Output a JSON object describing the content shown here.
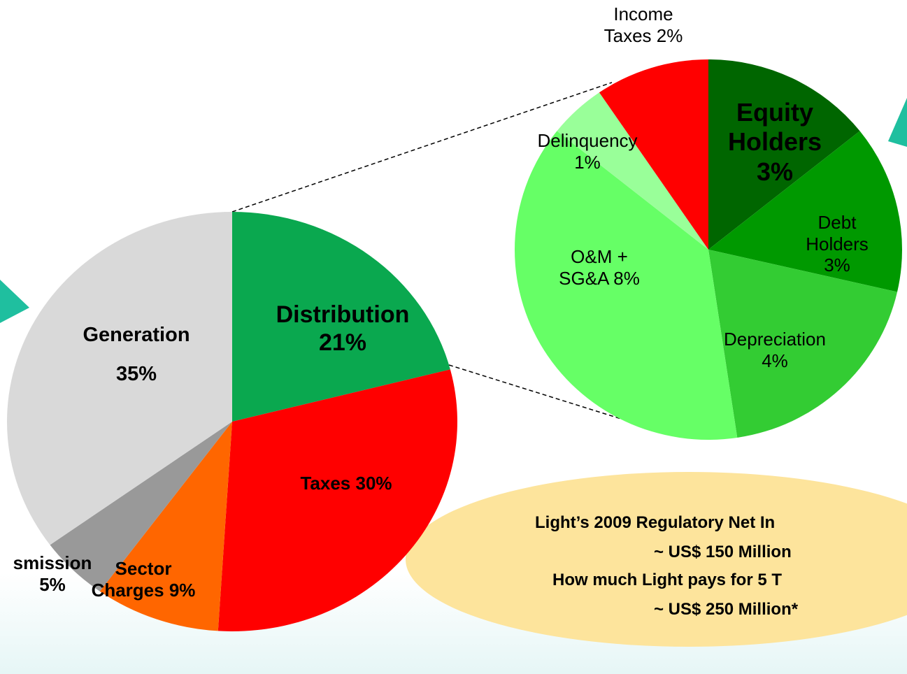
{
  "chart_data": [
    {
      "type": "pie",
      "categories": [
        "Distribution",
        "Taxes",
        "Sector Charges",
        "smission",
        "Generation"
      ],
      "values": [
        21,
        30,
        9,
        5,
        35
      ],
      "value_labels": [
        "21%",
        "30%",
        "9%",
        "5%",
        "35%"
      ],
      "colors": [
        "#0aa84f",
        "#ff0000",
        "#ff6600",
        "#999999",
        "#d9d9d9"
      ]
    },
    {
      "type": "pie",
      "categories": [
        "Equity Holders",
        "Debt Holders",
        "Depreciation",
        "O&M + SG&A",
        "Delinquency",
        "Income Taxes"
      ],
      "values": [
        3,
        3,
        4,
        8,
        1,
        2
      ],
      "value_labels": [
        "3%",
        "3%",
        "4%",
        "8%",
        "1%",
        "2%"
      ],
      "colors": [
        "#006600",
        "#009900",
        "#33cc33",
        "#66ff66",
        "#99ff99",
        "#ff0000"
      ]
    }
  ],
  "callout": {
    "lines": [
      "Light’s 2009 Regulatory Net In",
      "~ US$ 150 Million",
      "How much Light pays for 5 T",
      "~ US$ 250 Million*"
    ]
  }
}
